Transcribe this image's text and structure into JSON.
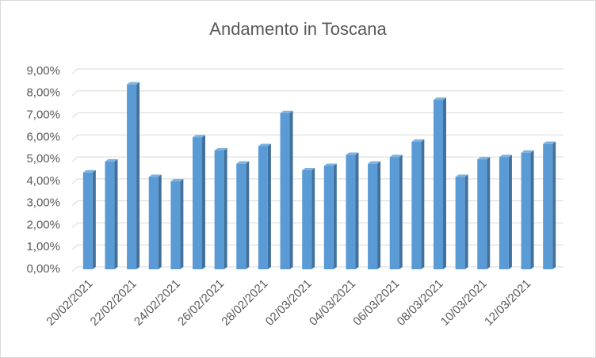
{
  "chart_data": {
    "type": "bar",
    "title": "Andamento in Toscana",
    "categories": [
      "20/02/2021",
      null,
      "22/02/2021",
      null,
      "24/02/2021",
      null,
      "26/02/2021",
      null,
      "28/02/2021",
      null,
      "02/03/2021",
      null,
      "04/03/2021",
      null,
      "06/03/2021",
      null,
      "08/03/2021",
      null,
      "10/03/2021",
      null,
      "12/03/2021",
      null
    ],
    "values": [
      4.4,
      4.9,
      8.4,
      4.2,
      4.0,
      6.0,
      5.4,
      4.8,
      5.6,
      7.1,
      4.5,
      4.7,
      5.2,
      4.8,
      5.1,
      5.8,
      7.7,
      4.2,
      5.0,
      5.1,
      5.3,
      5.7
    ],
    "color": "#5b9bd5",
    "ylim": [
      0,
      9
    ],
    "yticks": [
      {
        "value": 0,
        "label": "0,00%"
      },
      {
        "value": 1,
        "label": "1,00%"
      },
      {
        "value": 2,
        "label": "2,00%"
      },
      {
        "value": 3,
        "label": "3,00%"
      },
      {
        "value": 4,
        "label": "4,00%"
      },
      {
        "value": 5,
        "label": "5,00%"
      },
      {
        "value": 6,
        "label": "6,00%"
      },
      {
        "value": 7,
        "label": "7,00%"
      },
      {
        "value": 8,
        "label": "8,00%"
      },
      {
        "value": 9,
        "label": "9,00%"
      }
    ],
    "grid": true
  }
}
